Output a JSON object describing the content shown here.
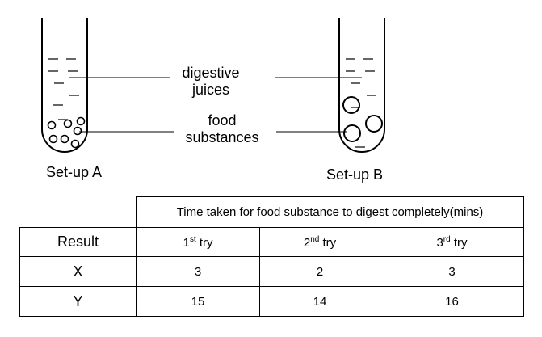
{
  "labels": {
    "digestive_juices_line1": "digestive",
    "digestive_juices_line2": "juices",
    "food_substances_line1": "food",
    "food_substances_line2": "substances",
    "setup_a": "Set-up A",
    "setup_b": "Set-up B"
  },
  "table": {
    "header": "Time taken for food substance to digest completely(mins)",
    "row_header": "Result",
    "tries": [
      {
        "num": "1",
        "sup": "st",
        "word": "try"
      },
      {
        "num": "2",
        "sup": "nd",
        "word": "try"
      },
      {
        "num": "3",
        "sup": "rd",
        "word": "try"
      }
    ],
    "rows": [
      {
        "label": "X",
        "values": [
          "3",
          "2",
          "3"
        ]
      },
      {
        "label": "Y",
        "values": [
          "15",
          "14",
          "16"
        ]
      }
    ]
  }
}
